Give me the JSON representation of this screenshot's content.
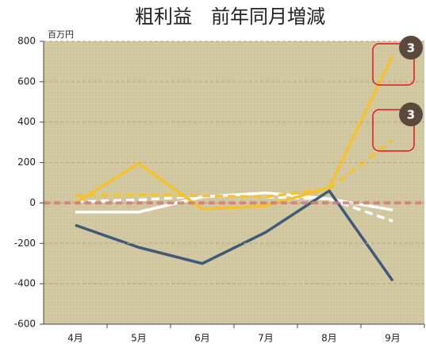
{
  "chart_data": {
    "type": "line",
    "title": "粗利益　前年同月増減",
    "y_unit": "百万円",
    "categories": [
      "4月",
      "5月",
      "6月",
      "7月",
      "8月",
      "9月"
    ],
    "series": [
      {
        "color": "#3e5a78",
        "dash": false,
        "values": [
          -110,
          -220,
          -300,
          -145,
          60,
          -385
        ]
      },
      {
        "color": "#f6c12a",
        "dash": false,
        "values": [
          0,
          195,
          -30,
          -15,
          75,
          730
        ]
      },
      {
        "color": "#f6c12a",
        "dash": true,
        "values": [
          35,
          40,
          35,
          30,
          70,
          310
        ]
      },
      {
        "color": "#ffffff",
        "dash": false,
        "values": [
          -45,
          -45,
          30,
          50,
          20,
          -35
        ]
      },
      {
        "color": "#ffffff",
        "dash": true,
        "values": [
          5,
          15,
          35,
          30,
          20,
          -90
        ]
      }
    ],
    "annotations": [
      "3",
      "3"
    ],
    "ylim": [
      -600,
      800
    ],
    "yticks": [
      -600,
      -400,
      -200,
      0,
      200,
      400,
      600,
      800
    ],
    "grid": true
  }
}
